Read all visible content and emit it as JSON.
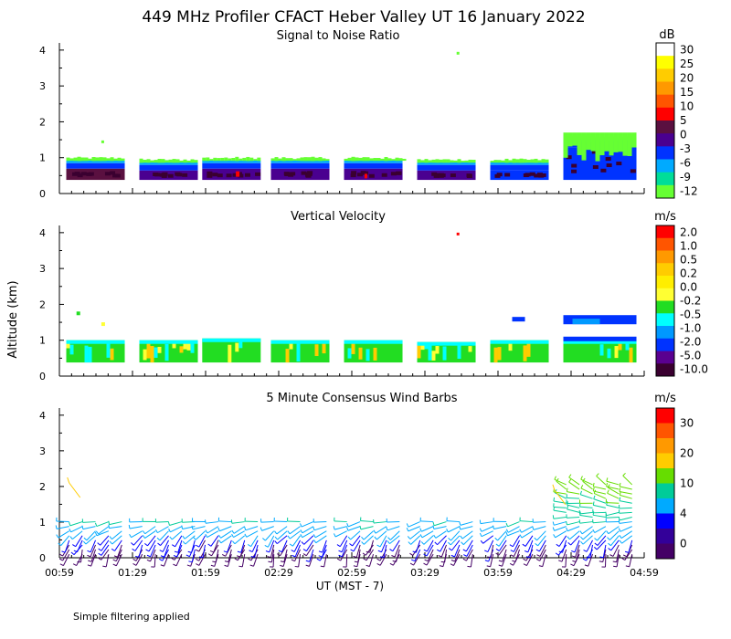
{
  "figure": {
    "title": "449 MHz Profiler CFACT Heber Valley UT 16 January 2022",
    "ylabel": "Altitude (km)",
    "xlabel": "UT  (MST - 7)",
    "footnote": "Simple filtering applied",
    "x_ticks": [
      "00:59",
      "01:29",
      "01:59",
      "02:29",
      "02:59",
      "03:29",
      "03:59",
      "04:29",
      "04:59"
    ],
    "y_ticks": [
      "0",
      "1",
      "2",
      "3",
      "4"
    ]
  },
  "chart_data": [
    {
      "id": "snr",
      "type": "heatmap",
      "title": "Signal to Noise Ratio",
      "xlabel": "UT  (MST - 7)",
      "ylabel": "Altitude (km)",
      "x_range_hours": [
        0.983,
        4.983
      ],
      "y_range_km": [
        0,
        4.2
      ],
      "colorbar": {
        "unit": "dB",
        "labels": [
          "30",
          "25",
          "20",
          "15",
          "10",
          "5",
          "0",
          "-3",
          "-6",
          "-9",
          "-12"
        ],
        "colors": [
          "#ffffff",
          "#ffff00",
          "#ffcc00",
          "#ff9900",
          "#ff5500",
          "#ff0000",
          "#5a1040",
          "#4a0090",
          "#0033ff",
          "#00aaff",
          "#00dd99",
          "#66ff33"
        ]
      },
      "blocks": [
        {
          "t0": 1.03,
          "t1": 1.43,
          "top": 1.0,
          "color": "#5a1040"
        },
        {
          "t0": 1.53,
          "t1": 1.93,
          "top": 0.95,
          "color": "#4a0090"
        },
        {
          "t0": 1.96,
          "t1": 2.36,
          "top": 1.0,
          "color": "#4a0090"
        },
        {
          "t0": 2.43,
          "t1": 2.83,
          "top": 1.0,
          "color": "#4a0090"
        },
        {
          "t0": 2.93,
          "t1": 3.33,
          "top": 1.0,
          "color": "#4a0090"
        },
        {
          "t0": 3.43,
          "t1": 3.83,
          "top": 0.95,
          "color": "#4a0090"
        },
        {
          "t0": 3.93,
          "t1": 4.33,
          "top": 0.95,
          "color": "#0033ff"
        },
        {
          "t0": 4.43,
          "t1": 4.93,
          "top": 1.6,
          "color": "#0033ff"
        }
      ]
    },
    {
      "id": "vv",
      "type": "heatmap",
      "title": "Vertical Velocity",
      "xlabel": "UT  (MST - 7)",
      "ylabel": "Altitude (km)",
      "x_range_hours": [
        0.983,
        4.983
      ],
      "y_range_km": [
        0,
        4.2
      ],
      "colorbar": {
        "unit": "m/s",
        "labels": [
          "2.0",
          "1.0",
          "0.5",
          "0.2",
          "0.0",
          "-0.2",
          "-0.5",
          "-1.0",
          "-2.0",
          "-5.0",
          "-10.0"
        ],
        "colors": [
          "#ff0000",
          "#ff5500",
          "#ff9900",
          "#ffcc00",
          "#ffee00",
          "#ffff33",
          "#22dd22",
          "#00ffff",
          "#0099ff",
          "#0033ff",
          "#5a0090",
          "#3a0030"
        ]
      },
      "blocks": [
        {
          "t0": 1.03,
          "t1": 1.43,
          "top": 1.0,
          "color": "#22dd22"
        },
        {
          "t0": 1.53,
          "t1": 1.93,
          "top": 1.0,
          "color": "#22dd22"
        },
        {
          "t0": 1.96,
          "t1": 2.36,
          "top": 1.05,
          "color": "#22dd22"
        },
        {
          "t0": 2.43,
          "t1": 2.83,
          "top": 1.0,
          "color": "#22dd22"
        },
        {
          "t0": 2.93,
          "t1": 3.33,
          "top": 1.0,
          "color": "#22dd22"
        },
        {
          "t0": 3.43,
          "t1": 3.83,
          "top": 0.95,
          "color": "#22dd22"
        },
        {
          "t0": 3.93,
          "t1": 4.33,
          "top": 1.0,
          "color": "#22dd22"
        },
        {
          "t0": 4.43,
          "t1": 4.93,
          "top": 1.0,
          "color": "#22dd22"
        }
      ]
    },
    {
      "id": "wind",
      "type": "scatter",
      "title": "5 Minute Consensus Wind Barbs",
      "xlabel": "UT  (MST - 7)",
      "ylabel": "Altitude (km)",
      "x_range_hours": [
        0.983,
        4.983
      ],
      "y_range_km": [
        0,
        4.2
      ],
      "colorbar": {
        "unit": "m/s",
        "labels": [
          "30",
          "20",
          "10",
          "4",
          "0"
        ],
        "colors": [
          "#ff0000",
          "#ff5500",
          "#ff9900",
          "#ffcc00",
          "#66dd00",
          "#00cc99",
          "#00aaff",
          "#0000ff",
          "#330099",
          "#440066"
        ]
      },
      "wind_summary": [
        {
          "alt_km": 0.2,
          "speed_ms": 2,
          "dir_deg": 200
        },
        {
          "alt_km": 0.5,
          "speed_ms": 4,
          "dir_deg": 210
        },
        {
          "alt_km": 1.0,
          "speed_ms": 8,
          "dir_deg": 260
        },
        {
          "alt_km": 2.0,
          "speed_ms": 15,
          "dir_deg": 300
        }
      ]
    }
  ]
}
